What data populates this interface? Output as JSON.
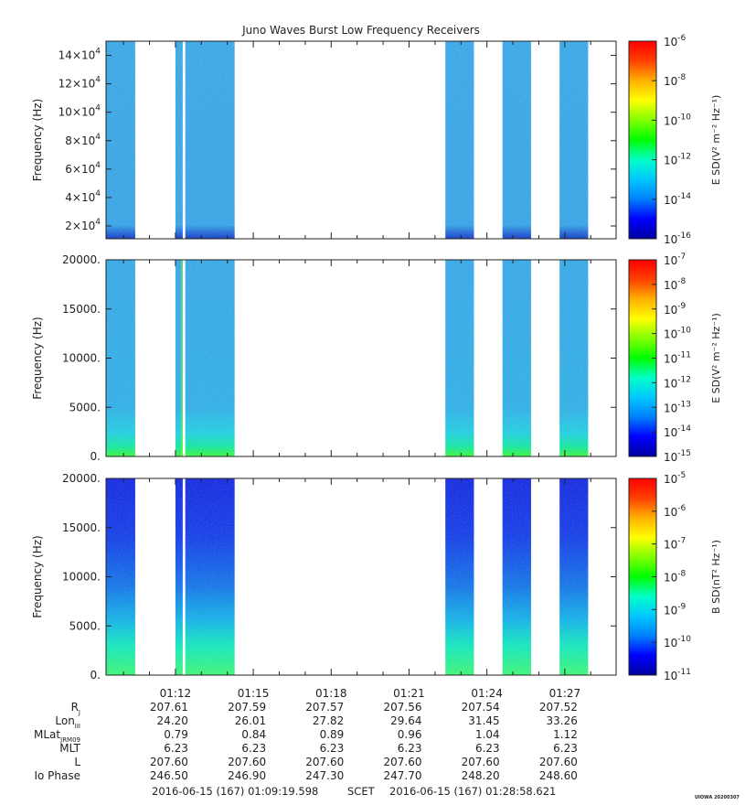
{
  "title": "Juno Waves Burst Low Frequency Receivers",
  "colors": {
    "spectrum": [
      "#0000a0",
      "#0000ff",
      "#0080ff",
      "#00c8ff",
      "#00ffc8",
      "#00ff00",
      "#80ff00",
      "#ffff00",
      "#ffb000",
      "#ff4000",
      "#ff0000"
    ],
    "background": "#ffffff",
    "axis": "#222222"
  },
  "chart_data": [
    {
      "type": "heatmap",
      "name": "panel-top",
      "ylabel": "Frequency (Hz)",
      "ylim": [
        11000,
        150000
      ],
      "yticks": [
        {
          "value": 20000,
          "mant": "2×10",
          "exp": "4"
        },
        {
          "value": 40000,
          "mant": "4×10",
          "exp": "4"
        },
        {
          "value": 60000,
          "mant": "6×10",
          "exp": "4"
        },
        {
          "value": 80000,
          "mant": "8×10",
          "exp": "4"
        },
        {
          "value": 100000,
          "mant": "10×10",
          "exp": "4"
        },
        {
          "value": 120000,
          "mant": "12×10",
          "exp": "4"
        },
        {
          "value": 140000,
          "mant": "14×10",
          "exp": "4"
        }
      ],
      "colorbar": {
        "label": "E SD(V² m⁻² Hz⁻¹)",
        "scale": "log",
        "ticks": [
          {
            "mant": "10",
            "exp": "-6"
          },
          {
            "mant": "10",
            "exp": "-8"
          },
          {
            "mant": "10",
            "exp": "-10"
          },
          {
            "mant": "10",
            "exp": "-12"
          },
          {
            "mant": "10",
            "exp": "-14"
          },
          {
            "mant": "10",
            "exp": "-16"
          }
        ]
      }
    },
    {
      "type": "heatmap",
      "name": "panel-middle",
      "ylabel": "Frequency (Hz)",
      "ylim": [
        0,
        20000
      ],
      "yticks": [
        {
          "value": 0,
          "label": "0."
        },
        {
          "value": 5000,
          "label": "5000."
        },
        {
          "value": 10000,
          "label": "10000."
        },
        {
          "value": 15000,
          "label": "15000."
        },
        {
          "value": 20000,
          "label": "20000."
        }
      ],
      "colorbar": {
        "label": "E SD(V² m⁻² Hz⁻¹)",
        "scale": "log",
        "ticks": [
          {
            "mant": "10",
            "exp": "-7"
          },
          {
            "mant": "10",
            "exp": "-8"
          },
          {
            "mant": "10",
            "exp": "-9"
          },
          {
            "mant": "10",
            "exp": "-10"
          },
          {
            "mant": "10",
            "exp": "-11"
          },
          {
            "mant": "10",
            "exp": "-12"
          },
          {
            "mant": "10",
            "exp": "-13"
          },
          {
            "mant": "10",
            "exp": "-14"
          },
          {
            "mant": "10",
            "exp": "-15"
          }
        ]
      }
    },
    {
      "type": "heatmap",
      "name": "panel-bottom",
      "ylabel": "Frequency (Hz)",
      "ylim": [
        0,
        20000
      ],
      "yticks": [
        {
          "value": 0,
          "label": "0."
        },
        {
          "value": 5000,
          "label": "5000."
        },
        {
          "value": 10000,
          "label": "10000."
        },
        {
          "value": 15000,
          "label": "15000."
        },
        {
          "value": 20000,
          "label": "20000."
        }
      ],
      "colorbar": {
        "label": "B SD(nT² Hz⁻¹)",
        "scale": "log",
        "ticks": [
          {
            "mant": "10",
            "exp": "-5"
          },
          {
            "mant": "10",
            "exp": "-6"
          },
          {
            "mant": "10",
            "exp": "-7"
          },
          {
            "mant": "10",
            "exp": "-8"
          },
          {
            "mant": "10",
            "exp": "-9"
          },
          {
            "mant": "10",
            "exp": "-10"
          },
          {
            "mant": "10",
            "exp": "-11"
          }
        ]
      }
    }
  ],
  "time_axis": {
    "start": "01:09:19.598",
    "end": "01:28:58.621",
    "tick_labels": [
      "01:12",
      "01:15",
      "01:18",
      "01:21",
      "01:24",
      "01:27"
    ],
    "burst_intervals_minutes": [
      {
        "start": 69.33,
        "end": 70.45,
        "style": "top-light"
      },
      {
        "start": 72.0,
        "end": 72.28,
        "style": "bright"
      },
      {
        "start": 72.28,
        "end": 72.38,
        "style": "gap"
      },
      {
        "start": 72.38,
        "end": 74.28,
        "style": "normal"
      },
      {
        "start": 82.4,
        "end": 83.5,
        "style": "normal"
      },
      {
        "start": 84.6,
        "end": 85.7,
        "style": "normal"
      },
      {
        "start": 86.8,
        "end": 87.9,
        "style": "normal"
      }
    ]
  },
  "ephemeris": {
    "rows": [
      {
        "label": "R",
        "sub": "J",
        "values": [
          "207.61",
          "207.59",
          "207.57",
          "207.56",
          "207.54",
          "207.52"
        ]
      },
      {
        "label": "Lon",
        "sub": "III",
        "values": [
          "24.20",
          "26.01",
          "27.82",
          "29.64",
          "31.45",
          "33.26"
        ]
      },
      {
        "label": "MLat",
        "sub": "JRM09",
        "values": [
          "0.79",
          "0.84",
          "0.89",
          "0.96",
          "1.04",
          "1.12"
        ]
      },
      {
        "label": "MLT",
        "sub": "",
        "values": [
          "6.23",
          "6.23",
          "6.23",
          "6.23",
          "6.23",
          "6.23"
        ]
      },
      {
        "label": "L",
        "sub": "",
        "values": [
          "207.60",
          "207.60",
          "207.60",
          "207.60",
          "207.60",
          "207.60"
        ]
      },
      {
        "label": "Io Phase",
        "sub": "",
        "values": [
          "246.50",
          "246.90",
          "247.30",
          "247.70",
          "248.20",
          "248.60"
        ]
      }
    ]
  },
  "footer": {
    "start": "2016-06-15 (167) 01:09:19.598",
    "scet": "SCET",
    "end": "2016-06-15 (167) 01:28:58.621",
    "stamp": "UIOWA 20200307"
  }
}
